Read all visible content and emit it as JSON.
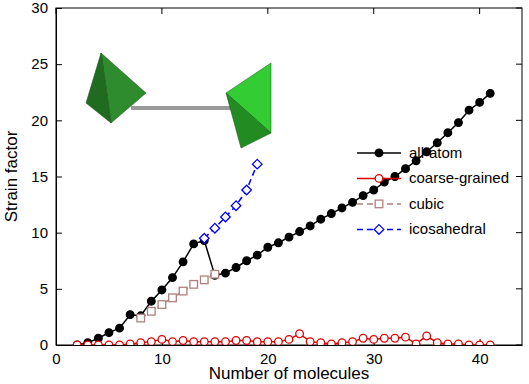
{
  "chart_data": {
    "type": "line",
    "x_label": "Number of molecules",
    "y_label": "Strain factor",
    "xlim": [
      0,
      44
    ],
    "xticks": [
      0,
      10,
      20,
      30,
      40
    ],
    "ylim": [
      0,
      30
    ],
    "yticks": [
      0,
      5,
      10,
      15,
      20,
      25,
      30
    ],
    "legend": "right",
    "series": [
      {
        "name": "all-atom",
        "color": "#000000",
        "marker": "circle",
        "line_style": "solid",
        "x": [
          2,
          3,
          4,
          5,
          6,
          7,
          8,
          9,
          10,
          11,
          12,
          13,
          14,
          15,
          16,
          17,
          18,
          19,
          20,
          21,
          22,
          23,
          24,
          25,
          26,
          27,
          28,
          29,
          30,
          31,
          32,
          33,
          34,
          35,
          36,
          37,
          38,
          39,
          40,
          41
        ],
        "values": [
          0.0,
          0.2,
          0.6,
          1.1,
          1.5,
          2.7,
          2.6,
          3.9,
          4.9,
          6.0,
          7.4,
          9.0,
          9.3,
          6.2,
          6.4,
          6.9,
          7.5,
          8.0,
          8.7,
          9.1,
          9.6,
          10.1,
          10.6,
          11.2,
          11.7,
          12.2,
          12.7,
          13.3,
          13.8,
          14.5,
          15.0,
          15.7,
          16.4,
          17.2,
          18.0,
          18.9,
          19.8,
          20.9,
          21.6,
          22.4
        ]
      },
      {
        "name": "coarse-grained",
        "color": "#e00000",
        "marker": "open-circle",
        "line_style": "solid",
        "x": [
          2,
          3,
          4,
          5,
          6,
          7,
          8,
          9,
          10,
          11,
          12,
          13,
          14,
          15,
          16,
          17,
          18,
          19,
          20,
          21,
          22,
          23,
          24,
          25,
          26,
          27,
          28,
          29,
          30,
          31,
          32,
          33,
          34,
          35,
          36,
          37,
          38,
          39,
          40,
          41
        ],
        "values": [
          0.0,
          0.0,
          0.0,
          0.0,
          0.0,
          0.1,
          0.2,
          0.3,
          0.5,
          0.3,
          0.4,
          0.3,
          0.3,
          0.3,
          0.3,
          0.4,
          0.4,
          0.3,
          0.3,
          0.3,
          0.5,
          1.0,
          0.3,
          0.2,
          0.1,
          0.2,
          0.3,
          0.6,
          0.5,
          0.6,
          0.6,
          0.7,
          0.1,
          0.8,
          0.2,
          0.1,
          0.1,
          0.0,
          0.0,
          0.0
        ]
      },
      {
        "name": "cubic",
        "color": "#b07f7f",
        "marker": "open-square",
        "line_style": "dashed",
        "x": [
          8,
          9,
          10,
          11,
          12,
          13,
          14,
          15
        ],
        "values": [
          2.4,
          3.0,
          3.6,
          4.2,
          4.8,
          5.4,
          5.8,
          6.3
        ]
      },
      {
        "name": "icosahedral",
        "color": "#0000ff",
        "marker": "open-diamond",
        "line_style": "dashed",
        "x": [
          14,
          15,
          16,
          17,
          18,
          19
        ],
        "values": [
          9.5,
          10.4,
          11.4,
          12.4,
          13.8,
          16.1
        ]
      }
    ]
  }
}
